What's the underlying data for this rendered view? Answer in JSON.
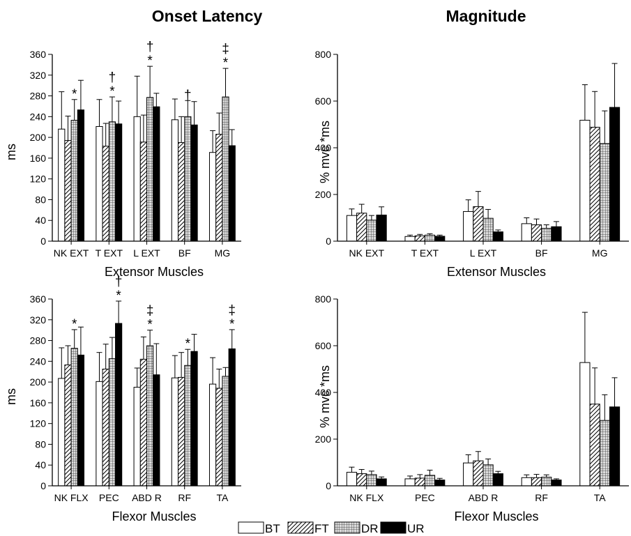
{
  "titles": {
    "left": "Onset Latency",
    "right": "Magnitude"
  },
  "series_names": [
    "BT",
    "FT",
    "DR",
    "UR"
  ],
  "legend": [
    {
      "name": "BT"
    },
    {
      "name": "FT"
    },
    {
      "name": "DR"
    },
    {
      "name": "UR"
    }
  ],
  "chart_data": [
    {
      "type": "bar",
      "title": "Onset Latency",
      "xlabel": "Extensor Muscles",
      "ylabel": "ms",
      "ylim": [
        0,
        360
      ],
      "yticks": [
        0,
        40,
        80,
        120,
        160,
        200,
        240,
        280,
        320,
        360
      ],
      "categories": [
        "NK EXT",
        "T EXT",
        "L EXT",
        "BF",
        "MG"
      ],
      "series": [
        {
          "name": "BT",
          "values": [
            216,
            221,
            240,
            234,
            171
          ],
          "errors": [
            72,
            52,
            78,
            40,
            42
          ]
        },
        {
          "name": "FT",
          "values": [
            194,
            183,
            191,
            190,
            206
          ],
          "errors": [
            47,
            44,
            52,
            50,
            41
          ]
        },
        {
          "name": "DR",
          "values": [
            233,
            230,
            277,
            240,
            278
          ],
          "errors": [
            40,
            48,
            60,
            31,
            55
          ]
        },
        {
          "name": "UR",
          "values": [
            253,
            226,
            259,
            224,
            184
          ],
          "errors": [
            57,
            44,
            26,
            45,
            31
          ]
        }
      ],
      "annotations": [
        {
          "category": "NK EXT",
          "series": "DR",
          "marks": [
            "*"
          ]
        },
        {
          "category": "T EXT",
          "series": "DR",
          "marks": [
            "*",
            "†"
          ]
        },
        {
          "category": "L EXT",
          "series": "DR",
          "marks": [
            "*",
            "†"
          ]
        },
        {
          "category": "BF",
          "series": "DR",
          "marks": [
            "†"
          ]
        },
        {
          "category": "MG",
          "series": "DR",
          "marks": [
            "*",
            "‡"
          ]
        }
      ]
    },
    {
      "type": "bar",
      "xlabel": "Extensor Muscles",
      "ylabel": "% mvc *ms",
      "ylim": [
        0,
        800
      ],
      "yticks": [
        0,
        200,
        400,
        600,
        800
      ],
      "categories": [
        "NK EXT",
        "T EXT",
        "L EXT",
        "BF",
        "MG"
      ],
      "series": [
        {
          "name": "BT",
          "values": [
            110,
            20,
            127,
            75,
            518
          ],
          "errors": [
            28,
            6,
            50,
            25,
            152
          ]
        },
        {
          "name": "FT",
          "values": [
            120,
            23,
            148,
            70,
            488
          ],
          "errors": [
            38,
            6,
            65,
            25,
            153
          ]
        },
        {
          "name": "DR",
          "values": [
            90,
            26,
            98,
            55,
            418
          ],
          "errors": [
            20,
            6,
            38,
            15,
            140
          ]
        },
        {
          "name": "UR",
          "values": [
            112,
            21,
            40,
            62,
            573
          ],
          "errors": [
            35,
            5,
            8,
            22,
            188
          ]
        }
      ],
      "annotations": []
    },
    {
      "type": "bar",
      "xlabel": "Flexor Muscles",
      "ylabel": "ms",
      "ylim": [
        0,
        360
      ],
      "yticks": [
        0,
        40,
        80,
        120,
        160,
        200,
        240,
        280,
        320,
        360
      ],
      "categories": [
        "NK FLX",
        "PEC",
        "ABD R",
        "RF",
        "TA"
      ],
      "series": [
        {
          "name": "BT",
          "values": [
            207,
            201,
            190,
            208,
            196
          ],
          "errors": [
            59,
            56,
            37,
            43,
            51
          ]
        },
        {
          "name": "FT",
          "values": [
            233,
            225,
            244,
            209,
            188
          ],
          "errors": [
            37,
            48,
            43,
            48,
            37
          ]
        },
        {
          "name": "DR",
          "values": [
            265,
            245,
            270,
            232,
            211
          ],
          "errors": [
            36,
            41,
            30,
            31,
            17
          ]
        },
        {
          "name": "UR",
          "values": [
            252,
            313,
            214,
            259,
            264
          ],
          "errors": [
            54,
            43,
            60,
            33,
            37
          ]
        }
      ],
      "annotations": [
        {
          "category": "NK FLX",
          "series": "DR",
          "marks": [
            "*"
          ]
        },
        {
          "category": "PEC",
          "series": "UR",
          "marks": [
            "*",
            "†"
          ]
        },
        {
          "category": "ABD R",
          "series": "DR",
          "marks": [
            "*",
            "‡"
          ]
        },
        {
          "category": "RF",
          "series": "DR",
          "marks": [
            "*"
          ]
        },
        {
          "category": "TA",
          "series": "UR",
          "marks": [
            "*",
            "‡"
          ]
        }
      ]
    },
    {
      "type": "bar",
      "xlabel": "Flexor Muscles",
      "ylabel": "% mvc *ms",
      "ylim": [
        0,
        800
      ],
      "yticks": [
        0,
        200,
        400,
        600,
        800
      ],
      "categories": [
        "NK FLX",
        "PEC",
        "ABD R",
        "RF",
        "TA"
      ],
      "series": [
        {
          "name": "BT",
          "values": [
            58,
            30,
            98,
            35,
            528
          ],
          "errors": [
            22,
            12,
            35,
            12,
            215
          ]
        },
        {
          "name": "FT",
          "values": [
            52,
            33,
            107,
            35,
            350
          ],
          "errors": [
            18,
            15,
            40,
            14,
            155
          ]
        },
        {
          "name": "DR",
          "values": [
            48,
            45,
            90,
            37,
            280
          ],
          "errors": [
            15,
            22,
            25,
            10,
            110
          ]
        },
        {
          "name": "UR",
          "values": [
            30,
            25,
            52,
            25,
            338
          ],
          "errors": [
            8,
            7,
            10,
            5,
            125
          ]
        }
      ],
      "annotations": []
    }
  ]
}
